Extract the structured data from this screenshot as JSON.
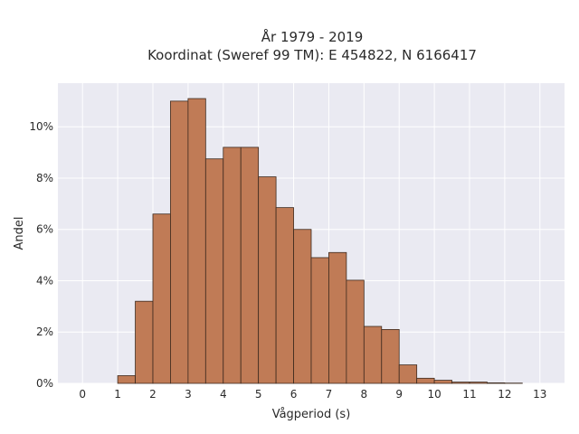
{
  "chart_data": {
    "type": "bar",
    "title_lines": [
      "År 1979 - 2019",
      "Koordinat (Sweref 99 TM): E 454822, N 6166417"
    ],
    "xlabel": "Vågperiod (s)",
    "ylabel": "Andel",
    "bin_width": 0.5,
    "bin_starts": [
      0,
      0.5,
      1,
      1.5,
      2,
      2.5,
      3,
      3.5,
      4,
      4.5,
      5,
      5.5,
      6,
      6.5,
      7,
      7.5,
      8,
      8.5,
      9,
      9.5,
      10,
      10.5,
      11,
      11.5,
      12,
      12.5
    ],
    "values": [
      0.0,
      0.0,
      0.3,
      3.2,
      6.6,
      11.0,
      11.1,
      8.75,
      9.2,
      9.2,
      8.05,
      6.85,
      6.0,
      4.9,
      5.1,
      4.02,
      2.22,
      2.1,
      0.72,
      0.2,
      0.12,
      0.05,
      0.05,
      0.02,
      0.01,
      0.0
    ],
    "xticks": [
      0,
      1,
      2,
      3,
      4,
      5,
      6,
      7,
      8,
      9,
      10,
      11,
      12,
      13
    ],
    "yticks": [
      0,
      2,
      4,
      6,
      8,
      10
    ],
    "ytick_labels": [
      "0%",
      "2%",
      "4%",
      "6%",
      "8%",
      "10%"
    ],
    "xlim": [
      -0.7,
      13.7
    ],
    "ylim": [
      0,
      11.7
    ],
    "grid": true,
    "colors": {
      "bar_fill": "#c07b56",
      "bar_stroke": "#3d2a1e",
      "plot_background": "#eaeaf2",
      "grid": "#ffffff"
    }
  }
}
